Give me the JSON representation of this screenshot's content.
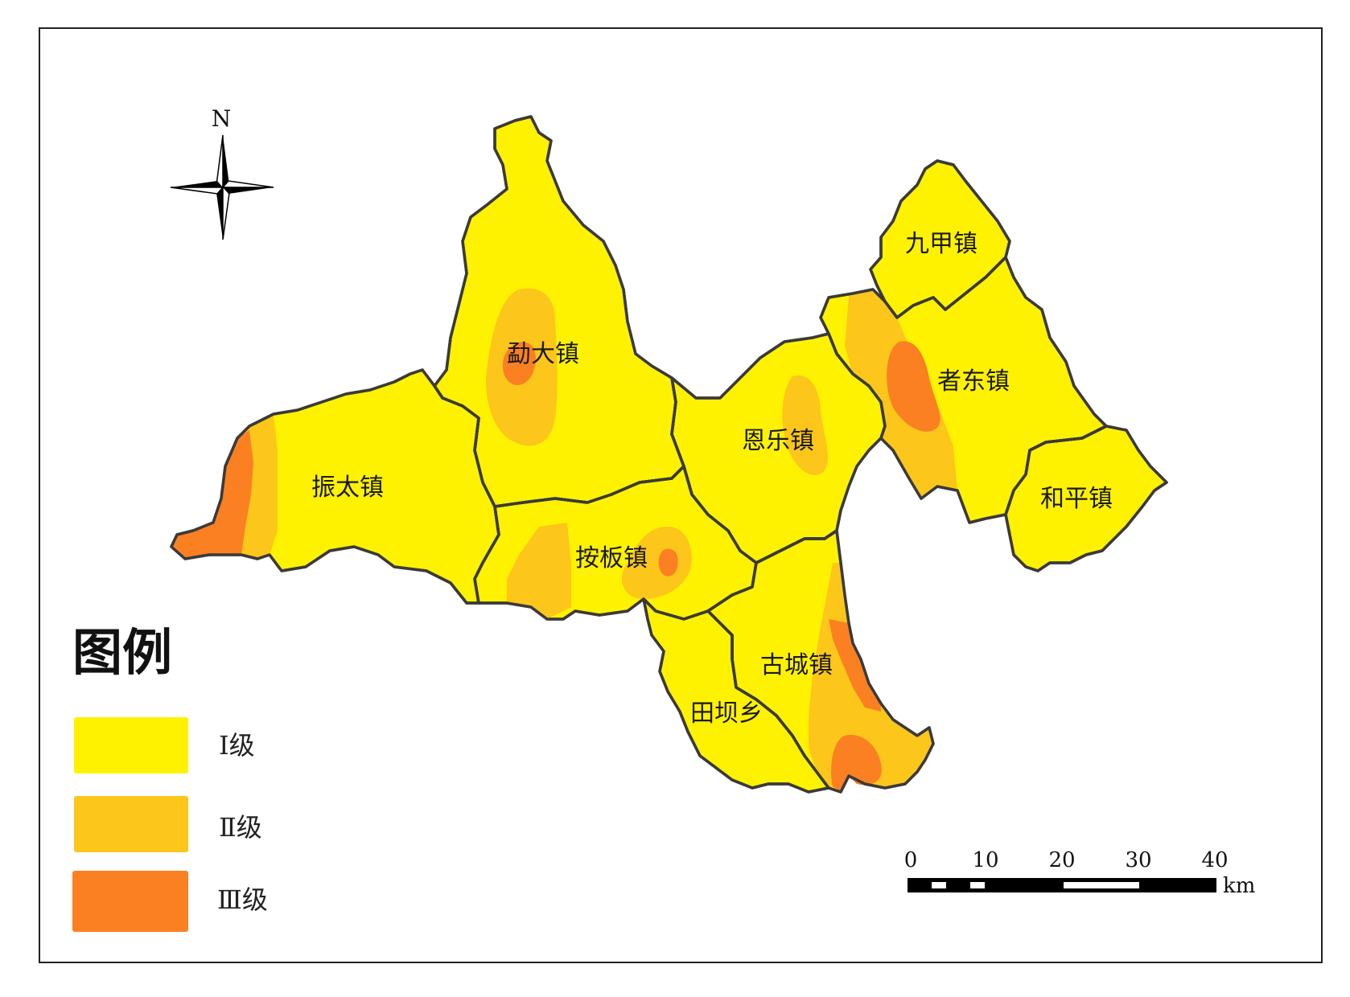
{
  "colors": {
    "level_1": "#fff200",
    "level_2": "#fdc61a",
    "level_3": "#fb8022",
    "boundary": "#3a3a3a",
    "frame": "#222222"
  },
  "north_arrow": {
    "label": "N"
  },
  "legend": {
    "title": "图例",
    "items": [
      {
        "label": "Ⅰ级",
        "color": "#fff200"
      },
      {
        "label": "Ⅱ级",
        "color": "#fdc61a"
      },
      {
        "label": "Ⅲ级",
        "color": "#fb8022"
      }
    ]
  },
  "scale_bar": {
    "ticks": [
      "0",
      "10",
      "20",
      "30",
      "40"
    ],
    "unit": "km"
  },
  "towns": [
    {
      "id": "mengda",
      "label": "勐大镇"
    },
    {
      "id": "zhentai",
      "label": "振太镇"
    },
    {
      "id": "anban",
      "label": "按板镇"
    },
    {
      "id": "enle",
      "label": "恩乐镇"
    },
    {
      "id": "jiujia",
      "label": "九甲镇"
    },
    {
      "id": "zhedong",
      "label": "者东镇"
    },
    {
      "id": "heping",
      "label": "和平镇"
    },
    {
      "id": "gucheng",
      "label": "古城镇"
    },
    {
      "id": "tianba",
      "label": "田坝乡"
    }
  ]
}
